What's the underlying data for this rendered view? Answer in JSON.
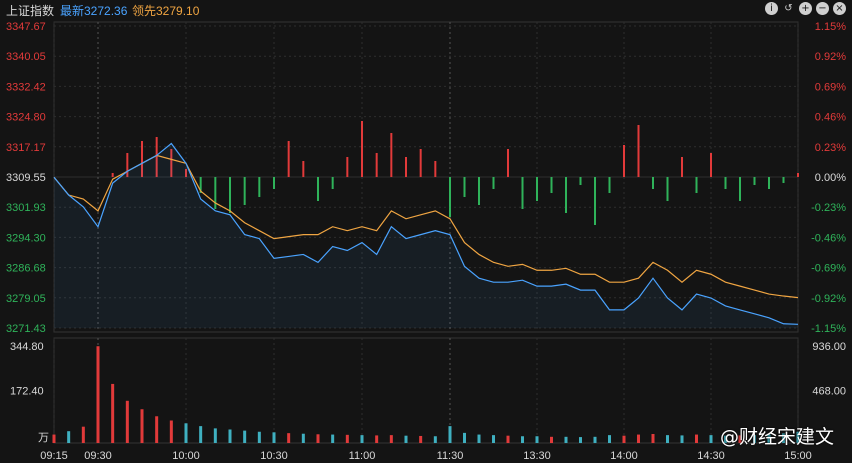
{
  "header": {
    "index_name": "上证指数",
    "latest_label": "最新3272.36",
    "lead_label": "领先3279.10"
  },
  "toolbar": {
    "icons": [
      "info-icon",
      "undo-icon",
      "zoom-in-icon",
      "zoom-out-icon",
      "close-icon"
    ]
  },
  "watermark": "@财经宋建文",
  "colors": {
    "up": "#e23a3a",
    "down": "#2fb35a",
    "price_line": "#4aa3ff",
    "lead_line": "#f0a542",
    "grid": "#2e2e2e",
    "axis_text_left": "#d9d9d9"
  },
  "chart_data": {
    "type": "line",
    "x_ticks": [
      "09:15",
      "09:30",
      "10:00",
      "10:30",
      "11:00",
      "11:30",
      "13:30",
      "14:00",
      "14:30",
      "15:00"
    ],
    "y_left_ticks": [
      "3347.67",
      "3340.05",
      "3332.42",
      "3324.80",
      "3317.17",
      "3309.55",
      "3301.93",
      "3294.30",
      "3286.68",
      "3279.05",
      "3271.43"
    ],
    "y_right_ticks": [
      "1.15%",
      "0.92%",
      "0.69%",
      "0.46%",
      "0.23%",
      "0.00%",
      "-0.23%",
      "-0.46%",
      "-0.69%",
      "-0.92%",
      "-1.15%"
    ],
    "ylim": [
      3271.43,
      3347.67
    ],
    "prev_close": 3309.55,
    "series": [
      {
        "x": [
          "09:15",
          "09:20",
          "09:25",
          "09:30",
          "09:35",
          "09:40",
          "09:45",
          "09:50",
          "09:55",
          "10:00",
          "10:05",
          "10:10",
          "10:15",
          "10:20",
          "10:25",
          "10:30",
          "10:35",
          "10:40",
          "10:45",
          "10:50",
          "10:55",
          "11:00",
          "11:05",
          "11:10",
          "11:15",
          "11:20",
          "11:25",
          "11:30",
          "13:05",
          "13:10",
          "13:15",
          "13:20",
          "13:25",
          "13:30",
          "13:35",
          "13:40",
          "13:45",
          "13:50",
          "13:55",
          "14:00",
          "14:05",
          "14:10",
          "14:15",
          "14:20",
          "14:25",
          "14:30",
          "14:35",
          "14:40",
          "14:45",
          "14:50",
          "14:55",
          "15:00"
        ],
        "values": [
          3309.5,
          3305.0,
          3302.0,
          3297.0,
          3308.0,
          3311.0,
          3313.0,
          3315.0,
          3318.0,
          3313.0,
          3304.0,
          3301.0,
          3300.0,
          3295.0,
          3294.0,
          3289.0,
          3289.5,
          3290.0,
          3288.0,
          3292.0,
          3291.0,
          3293.0,
          3290.0,
          3297.0,
          3294.0,
          3295.0,
          3296.0,
          3295.0,
          3287.0,
          3284.0,
          3283.0,
          3283.0,
          3283.5,
          3282.0,
          3282.0,
          3282.5,
          3281.0,
          3281.0,
          3276.0,
          3276.0,
          3279.0,
          3284.0,
          3279.0,
          3276.0,
          3280.0,
          3279.0,
          3277.0,
          3276.0,
          3275.0,
          3274.0,
          3272.5,
          3272.36
        ]
      },
      {
        "x": [
          "09:15",
          "09:20",
          "09:25",
          "09:30",
          "09:35",
          "09:40",
          "09:45",
          "09:50",
          "09:55",
          "10:00",
          "10:05",
          "10:10",
          "10:15",
          "10:20",
          "10:25",
          "10:30",
          "10:35",
          "10:40",
          "10:45",
          "10:50",
          "10:55",
          "11:00",
          "11:05",
          "11:10",
          "11:15",
          "11:20",
          "11:25",
          "11:30",
          "13:05",
          "13:10",
          "13:15",
          "13:20",
          "13:25",
          "13:30",
          "13:35",
          "13:40",
          "13:45",
          "13:50",
          "13:55",
          "14:00",
          "14:05",
          "14:10",
          "14:15",
          "14:20",
          "14:25",
          "14:30",
          "14:35",
          "14:40",
          "14:45",
          "14:50",
          "14:55",
          "15:00"
        ],
        "values": [
          3309.5,
          3305.0,
          3304.0,
          3301.0,
          3309.0,
          3311.0,
          3313.0,
          3315.0,
          3314.0,
          3313.0,
          3306.0,
          3303.0,
          3301.0,
          3298.0,
          3296.0,
          3294.0,
          3294.5,
          3295.0,
          3295.0,
          3297.0,
          3296.0,
          3297.0,
          3296.0,
          3301.0,
          3299.0,
          3300.0,
          3301.0,
          3299.0,
          3293.0,
          3290.0,
          3288.0,
          3287.0,
          3287.5,
          3286.0,
          3286.0,
          3286.5,
          3285.0,
          3285.0,
          3283.0,
          3283.0,
          3284.0,
          3288.0,
          3286.0,
          3283.0,
          3286.0,
          3285.0,
          3283.0,
          3282.0,
          3281.0,
          3280.0,
          3279.5,
          3279.1
        ]
      }
    ],
    "volume_axis_left": [
      "344.80",
      "172.40",
      "万"
    ],
    "volume_axis_right": [
      "936.00",
      "468.00"
    ],
    "volume_ylim": [
      0,
      344.8
    ],
    "volume": [
      {
        "x": "09:15",
        "value": 30,
        "dir": "up"
      },
      {
        "x": "09:20",
        "value": 42,
        "dir": "down"
      },
      {
        "x": "09:25",
        "value": 58,
        "dir": "up"
      },
      {
        "x": "09:30",
        "value": 344,
        "dir": "up"
      },
      {
        "x": "09:35",
        "value": 210,
        "dir": "up"
      },
      {
        "x": "09:40",
        "value": 150,
        "dir": "up"
      },
      {
        "x": "09:45",
        "value": 120,
        "dir": "up"
      },
      {
        "x": "09:50",
        "value": 95,
        "dir": "up"
      },
      {
        "x": "09:55",
        "value": 80,
        "dir": "up"
      },
      {
        "x": "10:00",
        "value": 70,
        "dir": "down"
      },
      {
        "x": "10:05",
        "value": 60,
        "dir": "down"
      },
      {
        "x": "10:10",
        "value": 52,
        "dir": "down"
      },
      {
        "x": "10:15",
        "value": 48,
        "dir": "down"
      },
      {
        "x": "10:20",
        "value": 44,
        "dir": "down"
      },
      {
        "x": "10:25",
        "value": 40,
        "dir": "down"
      },
      {
        "x": "10:30",
        "value": 38,
        "dir": "down"
      },
      {
        "x": "10:35",
        "value": 35,
        "dir": "up"
      },
      {
        "x": "10:40",
        "value": 33,
        "dir": "down"
      },
      {
        "x": "10:45",
        "value": 31,
        "dir": "up"
      },
      {
        "x": "10:50",
        "value": 30,
        "dir": "down"
      },
      {
        "x": "10:55",
        "value": 29,
        "dir": "up"
      },
      {
        "x": "11:00",
        "value": 28,
        "dir": "down"
      },
      {
        "x": "11:05",
        "value": 27,
        "dir": "up"
      },
      {
        "x": "11:10",
        "value": 28,
        "dir": "up"
      },
      {
        "x": "11:15",
        "value": 26,
        "dir": "down"
      },
      {
        "x": "11:20",
        "value": 25,
        "dir": "up"
      },
      {
        "x": "11:25",
        "value": 24,
        "dir": "down"
      },
      {
        "x": "11:30",
        "value": 60,
        "dir": "down"
      },
      {
        "x": "13:05",
        "value": 36,
        "dir": "down"
      },
      {
        "x": "13:10",
        "value": 30,
        "dir": "down"
      },
      {
        "x": "13:15",
        "value": 28,
        "dir": "down"
      },
      {
        "x": "13:20",
        "value": 26,
        "dir": "up"
      },
      {
        "x": "13:25",
        "value": 24,
        "dir": "down"
      },
      {
        "x": "13:30",
        "value": 24,
        "dir": "down"
      },
      {
        "x": "13:35",
        "value": 22,
        "dir": "up"
      },
      {
        "x": "13:40",
        "value": 22,
        "dir": "down"
      },
      {
        "x": "13:45",
        "value": 21,
        "dir": "down"
      },
      {
        "x": "13:50",
        "value": 22,
        "dir": "down"
      },
      {
        "x": "13:55",
        "value": 28,
        "dir": "down"
      },
      {
        "x": "14:00",
        "value": 26,
        "dir": "up"
      },
      {
        "x": "14:05",
        "value": 30,
        "dir": "up"
      },
      {
        "x": "14:10",
        "value": 32,
        "dir": "up"
      },
      {
        "x": "14:15",
        "value": 28,
        "dir": "down"
      },
      {
        "x": "14:20",
        "value": 27,
        "dir": "down"
      },
      {
        "x": "14:25",
        "value": 30,
        "dir": "up"
      },
      {
        "x": "14:30",
        "value": 28,
        "dir": "down"
      },
      {
        "x": "14:35",
        "value": 26,
        "dir": "down"
      },
      {
        "x": "14:40",
        "value": 27,
        "dir": "up"
      },
      {
        "x": "14:45",
        "value": 28,
        "dir": "down"
      },
      {
        "x": "14:50",
        "value": 30,
        "dir": "down"
      },
      {
        "x": "14:55",
        "value": 34,
        "dir": "down"
      },
      {
        "x": "15:00",
        "value": 40,
        "dir": "down"
      }
    ],
    "breadth": [
      {
        "x": "09:35",
        "value": 0.1
      },
      {
        "x": "09:40",
        "value": 0.6
      },
      {
        "x": "09:45",
        "value": 0.9
      },
      {
        "x": "09:50",
        "value": 1.0
      },
      {
        "x": "09:55",
        "value": 0.7
      },
      {
        "x": "10:00",
        "value": 0.2
      },
      {
        "x": "10:05",
        "value": -0.4
      },
      {
        "x": "10:10",
        "value": -0.8
      },
      {
        "x": "10:15",
        "value": -0.9
      },
      {
        "x": "10:20",
        "value": -0.7
      },
      {
        "x": "10:25",
        "value": -0.5
      },
      {
        "x": "10:30",
        "value": -0.3
      },
      {
        "x": "10:35",
        "value": 0.9
      },
      {
        "x": "10:40",
        "value": 0.4
      },
      {
        "x": "10:45",
        "value": -0.6
      },
      {
        "x": "10:50",
        "value": -0.3
      },
      {
        "x": "10:55",
        "value": 0.5
      },
      {
        "x": "11:00",
        "value": 1.4
      },
      {
        "x": "11:05",
        "value": 0.6
      },
      {
        "x": "11:10",
        "value": 1.1
      },
      {
        "x": "11:15",
        "value": 0.5
      },
      {
        "x": "11:20",
        "value": 0.7
      },
      {
        "x": "11:25",
        "value": 0.4
      },
      {
        "x": "11:30",
        "value": -1.0
      },
      {
        "x": "13:05",
        "value": -0.5
      },
      {
        "x": "13:10",
        "value": -0.7
      },
      {
        "x": "13:15",
        "value": -0.3
      },
      {
        "x": "13:20",
        "value": 0.7
      },
      {
        "x": "13:25",
        "value": -0.8
      },
      {
        "x": "13:30",
        "value": -0.6
      },
      {
        "x": "13:35",
        "value": -0.4
      },
      {
        "x": "13:40",
        "value": -0.9
      },
      {
        "x": "13:45",
        "value": -0.2
      },
      {
        "x": "13:50",
        "value": -1.2
      },
      {
        "x": "13:55",
        "value": -0.4
      },
      {
        "x": "14:00",
        "value": 0.8
      },
      {
        "x": "14:05",
        "value": 1.3
      },
      {
        "x": "14:10",
        "value": -0.3
      },
      {
        "x": "14:15",
        "value": -0.6
      },
      {
        "x": "14:20",
        "value": 0.5
      },
      {
        "x": "14:25",
        "value": -0.4
      },
      {
        "x": "14:30",
        "value": 0.6
      },
      {
        "x": "14:35",
        "value": -0.3
      },
      {
        "x": "14:40",
        "value": -0.6
      },
      {
        "x": "14:45",
        "value": -0.2
      },
      {
        "x": "14:50",
        "value": -0.3
      },
      {
        "x": "14:55",
        "value": -0.15
      },
      {
        "x": "15:00",
        "value": 0.1
      }
    ]
  }
}
